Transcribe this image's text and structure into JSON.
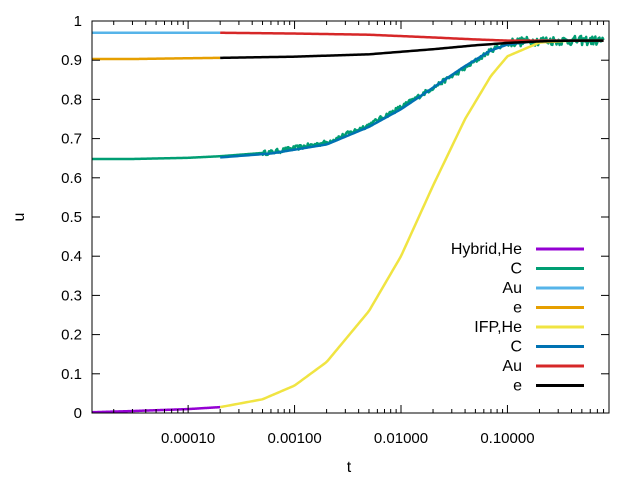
{
  "chart_data": {
    "type": "line",
    "title": "",
    "xlabel": "t",
    "ylabel": "u",
    "xscale": "log",
    "xlim": [
      1.25e-05,
      0.9
    ],
    "ylim": [
      0,
      1
    ],
    "grid": false,
    "legend_position": "center-right",
    "x_ticks": [
      {
        "value": 0.0001,
        "label": "0.00010"
      },
      {
        "value": 0.001,
        "label": "0.00100"
      },
      {
        "value": 0.01,
        "label": "0.01000"
      },
      {
        "value": 0.1,
        "label": "0.10000"
      }
    ],
    "y_ticks": [
      {
        "value": 0,
        "label": "0"
      },
      {
        "value": 0.1,
        "label": "0.1"
      },
      {
        "value": 0.2,
        "label": "0.2"
      },
      {
        "value": 0.3,
        "label": "0.3"
      },
      {
        "value": 0.4,
        "label": "0.4"
      },
      {
        "value": 0.5,
        "label": "0.5"
      },
      {
        "value": 0.6,
        "label": "0.6"
      },
      {
        "value": 0.7,
        "label": "0.7"
      },
      {
        "value": 0.8,
        "label": "0.8"
      },
      {
        "value": 0.9,
        "label": "0.9"
      },
      {
        "value": 1,
        "label": "1"
      }
    ],
    "series": [
      {
        "name": "Hybrid,He",
        "color": "#9400d3",
        "x": [
          1.25e-05,
          3e-05,
          0.0001,
          0.0002
        ],
        "y": [
          0.002,
          0.005,
          0.01,
          0.015
        ]
      },
      {
        "name": "C",
        "color": "#009e73",
        "noisy": true,
        "x": [
          1.25e-05,
          3e-05,
          0.0001,
          0.0002,
          0.0006,
          0.002,
          0.005,
          0.01,
          0.02,
          0.04,
          0.07,
          0.1,
          0.2,
          0.5,
          0.8
        ],
        "y": [
          0.648,
          0.648,
          0.651,
          0.655,
          0.665,
          0.69,
          0.735,
          0.78,
          0.83,
          0.88,
          0.925,
          0.945,
          0.95,
          0.95,
          0.95
        ]
      },
      {
        "name": "Au",
        "color": "#56b4e9",
        "x": [
          1.25e-05,
          0.0002
        ],
        "y": [
          0.97,
          0.97
        ]
      },
      {
        "name": "e",
        "color": "#e69f00",
        "x": [
          1.25e-05,
          3e-05,
          0.0001,
          0.0002
        ],
        "y": [
          0.903,
          0.903,
          0.905,
          0.906
        ]
      },
      {
        "name": "IFP,He",
        "color": "#f0e442",
        "x": [
          0.0002,
          0.0005,
          0.001,
          0.002,
          0.005,
          0.01,
          0.02,
          0.04,
          0.07,
          0.1,
          0.2,
          0.4,
          0.8
        ],
        "y": [
          0.015,
          0.035,
          0.07,
          0.13,
          0.26,
          0.4,
          0.58,
          0.75,
          0.86,
          0.91,
          0.945,
          0.95,
          0.95
        ]
      },
      {
        "name": "C",
        "color": "#0072b2",
        "x": [
          0.0002,
          0.0006,
          0.002,
          0.005,
          0.01,
          0.02,
          0.04,
          0.07,
          0.1,
          0.2,
          0.5,
          0.8
        ],
        "y": [
          0.652,
          0.662,
          0.685,
          0.73,
          0.775,
          0.83,
          0.885,
          0.925,
          0.94,
          0.95,
          0.95,
          0.95
        ]
      },
      {
        "name": "Au",
        "color": "#d62728",
        "x": [
          0.0002,
          0.001,
          0.005,
          0.02,
          0.05,
          0.1,
          0.2,
          0.4,
          0.8
        ],
        "y": [
          0.97,
          0.968,
          0.965,
          0.958,
          0.953,
          0.95,
          0.95,
          0.95,
          0.95
        ]
      },
      {
        "name": "e",
        "color": "#000000",
        "x": [
          0.0002,
          0.001,
          0.005,
          0.02,
          0.05,
          0.1,
          0.2,
          0.4,
          0.8
        ],
        "y": [
          0.906,
          0.909,
          0.915,
          0.928,
          0.938,
          0.944,
          0.948,
          0.95,
          0.95
        ]
      }
    ]
  }
}
